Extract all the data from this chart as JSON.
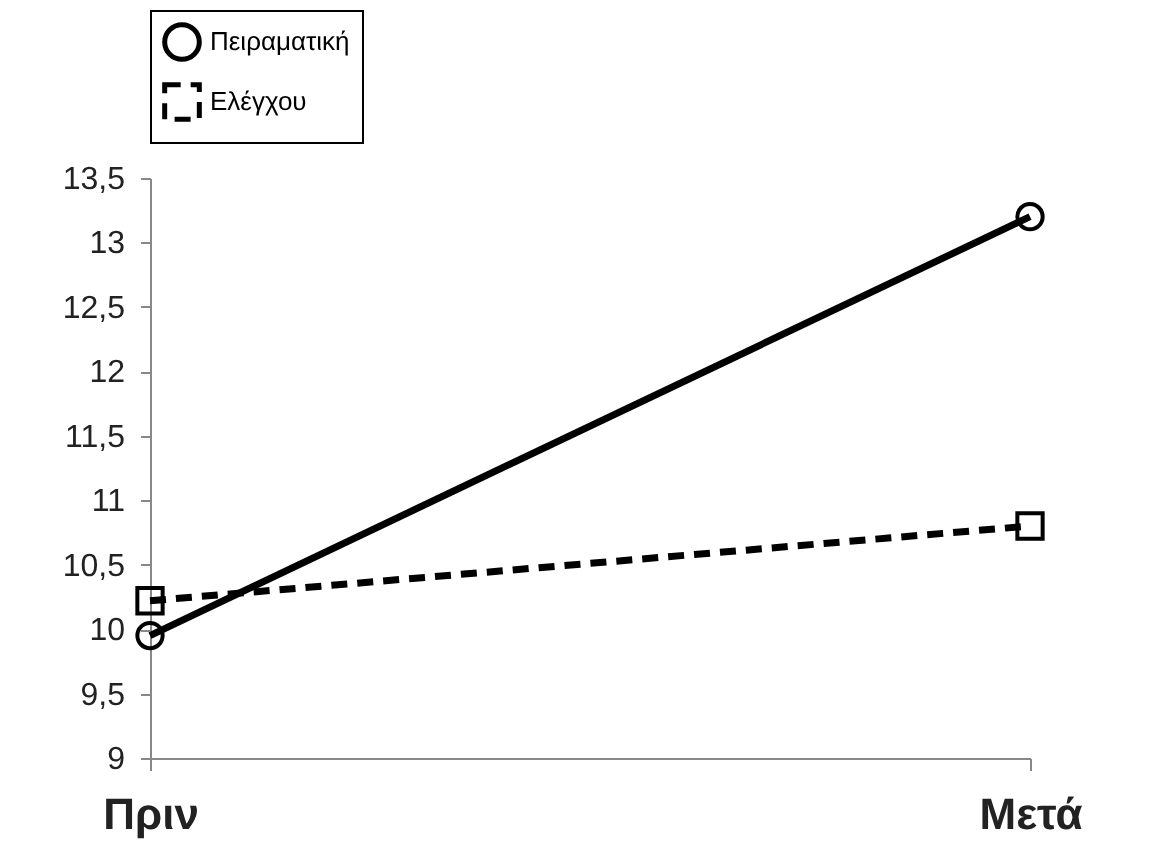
{
  "chart_data": {
    "type": "line",
    "categories": [
      "Πριν",
      "Μετά"
    ],
    "series": [
      {
        "name": "Πειραματική",
        "color": "#000000",
        "values": [
          9.95,
          13.2
        ],
        "line_style": "solid",
        "marker": "circle"
      },
      {
        "name": "Ελέγχου",
        "color": "#000000",
        "values": [
          10.22,
          10.8
        ],
        "line_style": "dashed",
        "marker": "square"
      }
    ],
    "ylim": [
      9,
      13.5
    ],
    "yticks": [
      {
        "value": 9,
        "label": "9"
      },
      {
        "value": 9.5,
        "label": "9,5"
      },
      {
        "value": 10,
        "label": "10"
      },
      {
        "value": 10.5,
        "label": "10,5"
      },
      {
        "value": 11,
        "label": "11"
      },
      {
        "value": 11.5,
        "label": "11,5"
      },
      {
        "value": 12,
        "label": "12"
      },
      {
        "value": 12.5,
        "label": "12,5"
      },
      {
        "value": 13,
        "label": "13"
      },
      {
        "value": 13.5,
        "label": "13,5"
      }
    ],
    "grid": false,
    "legend": "top"
  }
}
